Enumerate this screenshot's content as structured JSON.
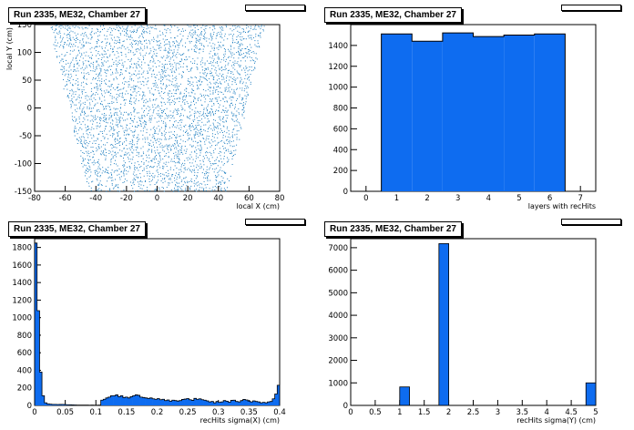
{
  "panels": [
    {
      "title": "Run 2335, ME32, Chamber 27",
      "chart_data": {
        "type": "scatter",
        "title": "Run 2335, ME32, Chamber 27",
        "xlabel": "local X (cm)",
        "ylabel": "local Y (cm)",
        "xlim": [
          -80,
          80
        ],
        "ylim": [
          -150,
          150
        ],
        "xticks": [
          -80,
          -60,
          -40,
          -20,
          0,
          20,
          40,
          60,
          80
        ],
        "yticks": [
          -150,
          -100,
          -50,
          0,
          50,
          100,
          150
        ],
        "shape": {
          "top_y": 150,
          "top_xmin": -70,
          "top_xmax": 70,
          "bottom_y": -150,
          "bottom_xmin": -45,
          "bottom_xmax": 45
        },
        "color": "#1f7fc0"
      }
    },
    {
      "title": "Run 2335, ME32, Chamber 27",
      "chart_data": {
        "type": "bar",
        "title": "Run 2335, ME32, Chamber 27",
        "xlabel": "layers with recHits",
        "ylabel": "",
        "x": [
          1,
          2,
          3,
          4,
          5,
          6
        ],
        "values": [
          1510,
          1440,
          1520,
          1485,
          1500,
          1510
        ],
        "xlim": [
          -0.5,
          7.5
        ],
        "ylim": [
          0,
          1600
        ],
        "xticks": [
          0,
          1,
          2,
          3,
          4,
          5,
          6,
          7
        ],
        "yticks": [
          0,
          200,
          400,
          600,
          800,
          1000,
          1200,
          1400
        ],
        "color": "#0e6cf0"
      }
    },
    {
      "title": "Run 2335, ME32, Chamber 27",
      "chart_data": {
        "type": "bar",
        "title": "Run 2335, ME32, Chamber 27",
        "xlabel": "recHits sigma(X) (cm)",
        "ylabel": "",
        "bin_start": 0,
        "bin_width": 0.004,
        "values": [
          1850,
          1080,
          380,
          110,
          30,
          18,
          14,
          12,
          12,
          10,
          11,
          12,
          9,
          8,
          7,
          6,
          5,
          4,
          4,
          4,
          3,
          3,
          2,
          3,
          2,
          2,
          3,
          60,
          70,
          85,
          95,
          110,
          110,
          120,
          100,
          110,
          90,
          95,
          85,
          100,
          110,
          120,
          115,
          95,
          90,
          85,
          80,
          85,
          75,
          70,
          78,
          65,
          70,
          55,
          62,
          48,
          60,
          55,
          50,
          55,
          68,
          72,
          78,
          65,
          58,
          80,
          70,
          75,
          65,
          60,
          52,
          40,
          45,
          30,
          45,
          35,
          40,
          55,
          48,
          38,
          58,
          60,
          45,
          40,
          55,
          68,
          62,
          50,
          40,
          52,
          45,
          40,
          30,
          35,
          30,
          40,
          45,
          75,
          130,
          230
        ],
        "xlim": [
          0,
          0.4
        ],
        "ylim": [
          0,
          1900
        ],
        "xticks": [
          0,
          0.05,
          0.1,
          0.15,
          0.2,
          0.25,
          0.3,
          0.35,
          0.4
        ],
        "yticks": [
          0,
          200,
          400,
          600,
          800,
          1000,
          1200,
          1400,
          1600,
          1800
        ],
        "color": "#0e6cf0"
      }
    },
    {
      "title": "Run 2335, ME32, Chamber 27",
      "chart_data": {
        "type": "bar",
        "title": "Run 2335, ME32, Chamber 27",
        "xlabel": "recHits sigma(Y) (cm)",
        "ylabel": "",
        "bins": [
          {
            "x0": 1.0,
            "x1": 1.2,
            "value": 820
          },
          {
            "x0": 1.8,
            "x1": 2.0,
            "value": 7180
          },
          {
            "x0": 4.8,
            "x1": 5.0,
            "value": 1000
          }
        ],
        "xlim": [
          0,
          5
        ],
        "ylim": [
          0,
          7400
        ],
        "xticks": [
          0,
          0.5,
          1,
          1.5,
          2,
          2.5,
          3,
          3.5,
          4,
          4.5,
          5
        ],
        "yticks": [
          0,
          1000,
          2000,
          3000,
          4000,
          5000,
          6000,
          7000
        ],
        "color": "#0e6cf0"
      }
    }
  ]
}
